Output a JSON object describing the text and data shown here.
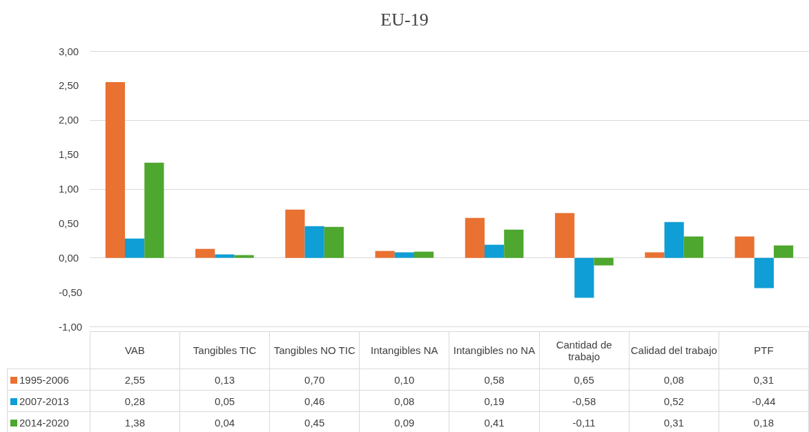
{
  "chart_data": {
    "type": "bar",
    "title": "EU-19",
    "categories": [
      "VAB",
      "Tangibles TIC",
      "Tangibles NO TIC",
      "Intangibles NA",
      "Intangibles no NA",
      "Cantidad de trabajo",
      "Calidad del trabajo",
      "PTF"
    ],
    "series": [
      {
        "name": "1995-2006",
        "color": "#e97132",
        "values": [
          2.55,
          0.13,
          0.7,
          0.1,
          0.58,
          0.65,
          0.08,
          0.31
        ],
        "value_labels": [
          "2,55",
          "0,13",
          "0,70",
          "0,10",
          "0,58",
          "0,65",
          "0,08",
          "0,31"
        ]
      },
      {
        "name": "2007-2013",
        "color": "#0f9ed5",
        "values": [
          0.28,
          0.05,
          0.46,
          0.08,
          0.19,
          -0.58,
          0.52,
          -0.44
        ],
        "value_labels": [
          "0,28",
          "0,05",
          "0,46",
          "0,08",
          "0,19",
          "-0,58",
          "0,52",
          "-0,44"
        ]
      },
      {
        "name": "2014-2020",
        "color": "#4ea72e",
        "values": [
          1.38,
          0.04,
          0.45,
          0.09,
          0.41,
          -0.11,
          0.31,
          0.18
        ],
        "value_labels": [
          "1,38",
          "0,04",
          "0,45",
          "0,09",
          "0,41",
          "-0,11",
          "0,31",
          "0,18"
        ]
      }
    ],
    "ylim": [
      -1,
      3
    ],
    "yticks": [
      {
        "value": -1,
        "label": "-1,00"
      },
      {
        "value": -0.5,
        "label": "-0,50"
      },
      {
        "value": 0,
        "label": "0,00"
      },
      {
        "value": 0.5,
        "label": "0,50"
      },
      {
        "value": 1,
        "label": "1,00"
      },
      {
        "value": 1.5,
        "label": "1,50"
      },
      {
        "value": 2,
        "label": "2,00"
      },
      {
        "value": 2.5,
        "label": "2,50"
      },
      {
        "value": 3,
        "label": "3,00"
      }
    ],
    "grid": "y",
    "legend": "bottom"
  }
}
